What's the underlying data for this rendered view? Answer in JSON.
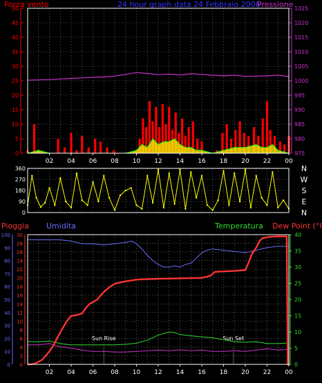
{
  "colors": {
    "background": "#000000",
    "wind_speed": "#ff0000",
    "wind_gust": "#00ff00",
    "gust_fill": "#ffff00",
    "pressure": "#cc33cc",
    "direction": "#ffff00",
    "rain": "#ff3333",
    "humidity": "#6b6bff",
    "temperature": "#33dd33",
    "dew_point": "#cc33cc",
    "axis_white": "#ffffff",
    "grid": "#9a9a9a"
  },
  "chart_data": [
    {
      "type": "line",
      "panel": "wind_pressure",
      "title": "24 hour graph data  24 Febbraio 2006",
      "left_label": "Forza vento",
      "right_label": "Pressione",
      "x_ticks": [
        "02",
        "04",
        "06",
        "08",
        "10",
        "12",
        "14",
        "16",
        "18",
        "20",
        "22",
        "00"
      ],
      "x_range_hours": [
        0,
        24
      ],
      "y_left_range": [
        0,
        50
      ],
      "y_left_ticks": [
        0,
        5,
        10,
        15,
        20,
        25,
        30,
        35,
        40,
        45,
        50
      ],
      "y_right_range": [
        975,
        1025
      ],
      "y_right_ticks": [
        975,
        980,
        985,
        990,
        995,
        1000,
        1005,
        1010,
        1015,
        1020,
        1025
      ],
      "grid": true,
      "series": [
        {
          "name": "Pressione",
          "axis": "right",
          "x": [
            0,
            2,
            4,
            6,
            7,
            8,
            9,
            10,
            11,
            12,
            13,
            14,
            15,
            16,
            17,
            18,
            19,
            20,
            21,
            22,
            23,
            24
          ],
          "y": [
            1000.2,
            1000.4,
            1000.8,
            1001.2,
            1001.3,
            1001.6,
            1002.2,
            1002.8,
            1002.5,
            1002.1,
            1002.3,
            1002.0,
            1002.4,
            1002.2,
            1001.9,
            1001.7,
            1001.9,
            1001.5,
            1001.6,
            1001.7,
            1001.9,
            1001.4
          ]
        },
        {
          "name": "wind speed",
          "axis": "left",
          "x": [
            0.0,
            0.6,
            1.0,
            2.8,
            3.4,
            4.0,
            4.5,
            5.0,
            5.6,
            6.2,
            6.7,
            7.3,
            7.9,
            8.6,
            9.3,
            10.0,
            10.3,
            10.6,
            10.9,
            11.2,
            11.5,
            11.8,
            12.1,
            12.4,
            12.7,
            13.0,
            13.3,
            13.6,
            13.9,
            14.2,
            14.5,
            14.8,
            15.2,
            15.6,
            16.0,
            16.8,
            17.4,
            17.9,
            18.3,
            18.7,
            19.1,
            19.5,
            19.9,
            20.3,
            20.8,
            21.2,
            21.6,
            22.0,
            22.3,
            22.7,
            23.2,
            23.6,
            24.0
          ],
          "y": [
            1,
            10,
            1,
            5,
            2,
            7,
            1,
            6,
            2,
            5,
            4,
            2,
            1,
            0,
            0,
            1,
            5,
            12,
            9,
            18,
            11,
            16,
            9,
            17,
            10,
            16,
            8,
            14,
            7,
            12,
            6,
            9,
            11,
            5,
            4,
            0,
            1,
            7,
            10,
            5,
            8,
            11,
            7,
            6,
            9,
            6,
            12,
            18,
            8,
            6,
            4,
            3,
            6
          ]
        },
        {
          "name": "gust",
          "axis": "left",
          "x": [
            0,
            1,
            2,
            9,
            10,
            10.5,
            11,
            11.5,
            12,
            12.5,
            13,
            13.5,
            14,
            14.5,
            15,
            15.5,
            16,
            17,
            18,
            19,
            20,
            21,
            21.5,
            22,
            22.5,
            23,
            24
          ],
          "y": [
            0,
            1,
            0,
            0,
            1,
            3,
            2,
            5,
            3,
            4,
            4,
            5,
            3,
            2,
            2,
            1,
            1,
            0,
            1,
            2,
            2,
            3,
            2,
            2,
            3,
            1,
            0
          ]
        }
      ]
    },
    {
      "type": "scatter",
      "panel": "wind_direction",
      "x_range_hours": [
        0,
        24
      ],
      "y_left_range": [
        0,
        360
      ],
      "y_left_ticks": [
        0,
        90,
        180,
        270,
        360
      ],
      "y_right_labels": [
        "N",
        "W",
        "S",
        "E",
        "N"
      ],
      "grid": true,
      "series": [
        {
          "name": "direction",
          "x": [
            0.0,
            0.4,
            0.8,
            1.2,
            1.6,
            2.0,
            2.5,
            3.0,
            3.5,
            4.0,
            4.5,
            5.0,
            5.5,
            6.0,
            6.5,
            7.0,
            7.5,
            8.0,
            8.5,
            9.0,
            9.5,
            10.0,
            10.5,
            11.0,
            11.5,
            12.0,
            12.5,
            13.0,
            13.5,
            14.0,
            14.5,
            15.0,
            15.5,
            16.0,
            16.5,
            17.0,
            17.5,
            18.0,
            18.5,
            19.0,
            19.5,
            20.0,
            20.5,
            21.0,
            21.5,
            22.0,
            22.5,
            23.0,
            23.5,
            24.0
          ],
          "y": [
            60,
            300,
            120,
            45,
            80,
            200,
            60,
            280,
            90,
            40,
            320,
            100,
            60,
            250,
            90,
            300,
            120,
            20,
            140,
            180,
            200,
            60,
            30,
            300,
            80,
            350,
            40,
            320,
            70,
            350,
            30,
            330,
            120,
            300,
            60,
            20,
            100,
            340,
            60,
            320,
            90,
            350,
            40,
            300,
            120,
            60,
            330,
            40,
            100,
            30
          ]
        }
      ]
    },
    {
      "type": "line",
      "panel": "rain_humidity_temp",
      "labels": [
        "Pioggia",
        "Umidita",
        "Temperatura",
        "Dew Point (°C)"
      ],
      "x_ticks": [
        "02",
        "04",
        "06",
        "08",
        "10",
        "12",
        "14",
        "16",
        "18",
        "20",
        "22",
        "00"
      ],
      "x_range_hours": [
        0,
        24
      ],
      "y_humidity_range": [
        0,
        100
      ],
      "y_humidity_ticks": [
        0,
        10,
        20,
        30,
        40,
        50,
        60,
        70,
        80,
        90,
        100
      ],
      "y_rain_range": [
        0,
        30
      ],
      "y_rain_ticks": [
        0,
        2,
        4,
        6,
        8,
        10,
        12,
        14,
        16,
        18,
        20,
        22,
        24,
        26,
        28,
        30
      ],
      "y_temp_range": [
        0,
        40
      ],
      "y_temp_ticks": [
        0,
        5,
        10,
        15,
        20,
        25,
        30,
        35,
        40
      ],
      "grid": true,
      "annotations": [
        {
          "text": "Sun Rise",
          "x": 7.0
        },
        {
          "text": "Sun Set",
          "x": 18.9
        }
      ],
      "series": [
        {
          "name": "Umidita",
          "axis": "humidity",
          "x": [
            0,
            2,
            3,
            4,
            5,
            6,
            7,
            8,
            9,
            9.6,
            10,
            10.5,
            11,
            11.5,
            12,
            12.5,
            13,
            13.5,
            14,
            14.5,
            15,
            15.5,
            16,
            16.5,
            17,
            18,
            19,
            20,
            21,
            22,
            23,
            24
          ],
          "y": [
            96,
            96,
            96,
            95,
            93,
            93,
            92,
            93,
            94,
            95,
            93,
            89,
            84,
            80,
            77,
            75,
            75,
            76,
            75,
            77,
            78,
            82,
            86,
            88,
            89,
            88,
            87,
            86,
            88,
            90,
            91,
            91
          ]
        },
        {
          "name": "Pioggia",
          "axis": "rain",
          "x": [
            0,
            0.3,
            0.7,
            1.0,
            1.3,
            1.6,
            2.0,
            2.4,
            2.8,
            3.2,
            3.6,
            4.0,
            4.5,
            5.0,
            5.4,
            5.7,
            6.0,
            6.4,
            6.8,
            7.2,
            7.6,
            8.0,
            8.4,
            9.0,
            10.0,
            12.0,
            14.0,
            16.0,
            16.8,
            17.2,
            18.0,
            19.0,
            20.0,
            20.3,
            20.6,
            21.0,
            21.3,
            21.6,
            22.0,
            22.3,
            23.0,
            23.8,
            23.9,
            24.0
          ],
          "y": [
            0,
            0,
            0.2,
            0.6,
            1.0,
            1.8,
            3.0,
            4.5,
            6.5,
            8.3,
            10.0,
            11.2,
            11.4,
            11.8,
            13.2,
            14.0,
            14.4,
            15.0,
            16.2,
            17.2,
            18.0,
            18.6,
            18.9,
            19.2,
            19.6,
            19.8,
            19.9,
            20.0,
            20.5,
            21.4,
            21.5,
            21.6,
            21.8,
            23.5,
            25.5,
            27.0,
            28.5,
            29.2,
            29.4,
            29.5,
            29.6,
            29.6,
            0,
            0
          ]
        },
        {
          "name": "Temperatura",
          "axis": "temp",
          "x": [
            0,
            1,
            2,
            3,
            4,
            5,
            6,
            7,
            8,
            9,
            10,
            11,
            12,
            13,
            13.5,
            14,
            15,
            16,
            17,
            18,
            19,
            20,
            21,
            22,
            23,
            24
          ],
          "y": [
            7,
            7,
            7.2,
            6.4,
            6,
            6,
            6,
            6,
            6,
            6.2,
            6.5,
            7.5,
            9,
            10,
            9.8,
            9.2,
            8.8,
            8.5,
            8.2,
            7.6,
            7,
            6.8,
            7,
            6.4,
            6.4,
            6.6
          ]
        },
        {
          "name": "Dew Point",
          "axis": "temp",
          "x": [
            0,
            1,
            2,
            3,
            4,
            5,
            6,
            7,
            8,
            9,
            10,
            11,
            12,
            13,
            14,
            15,
            16,
            17,
            18,
            19,
            20,
            21,
            22,
            23,
            24
          ],
          "y": [
            6,
            6,
            6.4,
            5.4,
            5,
            4.4,
            4,
            4,
            3.8,
            3.8,
            4,
            4.2,
            4.4,
            4.2,
            4.5,
            4.2,
            4.4,
            4.0,
            4.0,
            4.2,
            4.0,
            4.4,
            4.8,
            4.4,
            4.6
          ]
        }
      ]
    }
  ]
}
